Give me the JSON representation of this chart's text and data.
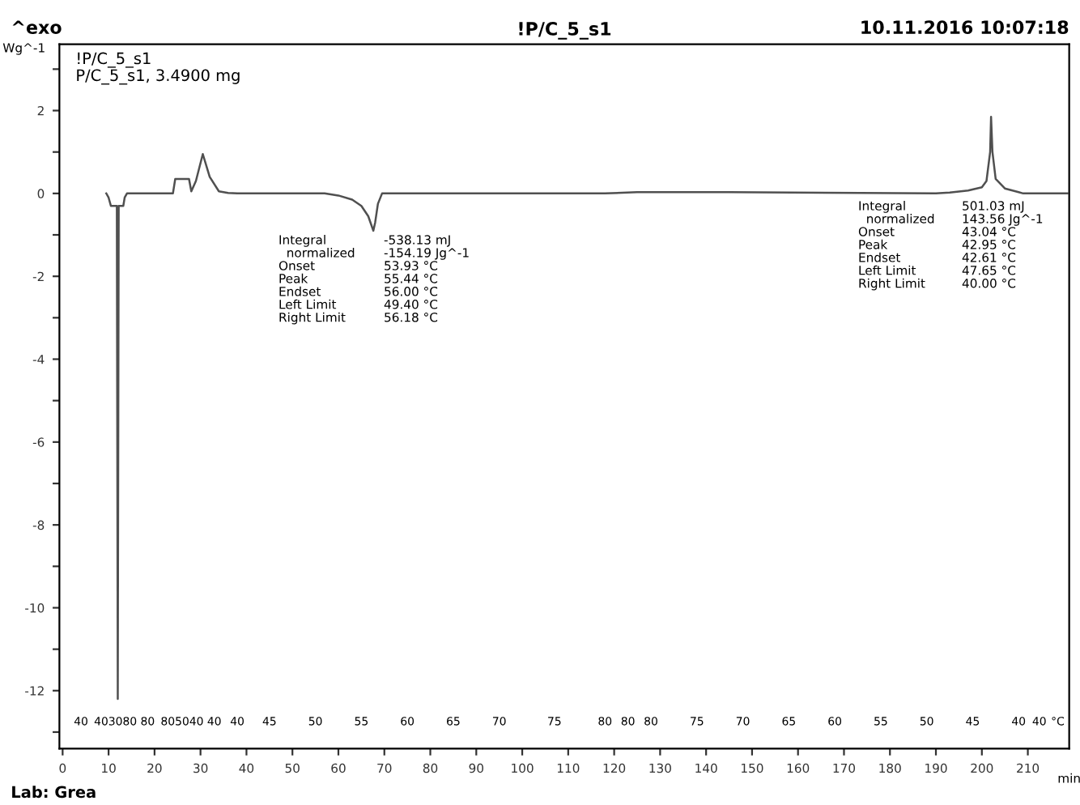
{
  "chart_data": {
    "type": "line",
    "title": "!P/C_5_s1",
    "ylabel": "Wg^-1",
    "xlabel": "min",
    "x": [
      9.5,
      10,
      10.5,
      11.8,
      12,
      12.2,
      12.5,
      13.2,
      13.5,
      14,
      24,
      24.5,
      27.5,
      28,
      29,
      30.5,
      32,
      34,
      36,
      38,
      57,
      60,
      63,
      65,
      66.5,
      67.6,
      68,
      68.6,
      69.5,
      118,
      125,
      145,
      190,
      193,
      197,
      200,
      201,
      201.8,
      202,
      202.3,
      203,
      205,
      208,
      209,
      213,
      218.6
    ],
    "series": [
      {
        "color": "#505050",
        "values": [
          0,
          -0.1,
          -0.3,
          -0.3,
          -12.2,
          -0.3,
          -0.3,
          -0.3,
          -0.1,
          0,
          0,
          0.35,
          0.35,
          0.05,
          0.3,
          0.95,
          0.4,
          0.05,
          0.01,
          0,
          0,
          -0.05,
          -0.15,
          -0.3,
          -0.55,
          -0.9,
          -0.7,
          -0.25,
          0,
          0,
          0.03,
          0.03,
          0,
          0.02,
          0.07,
          0.15,
          0.3,
          1.0,
          1.85,
          1.0,
          0.35,
          0.12,
          0.03,
          0,
          0,
          0
        ]
      }
    ],
    "xlim": [
      -0.7,
      219
    ],
    "ylim": [
      -13.4,
      3.6
    ],
    "xticks": [
      0,
      10,
      20,
      30,
      40,
      50,
      60,
      70,
      80,
      90,
      100,
      110,
      120,
      130,
      140,
      150,
      160,
      170,
      180,
      190,
      200,
      210
    ],
    "yticks": [
      {
        "value": -13,
        "label": null
      },
      -12,
      {
        "value": -11,
        "label": null
      },
      -10,
      {
        "value": -9,
        "label": null
      },
      -8,
      {
        "value": -7,
        "label": null
      },
      -6,
      {
        "value": -5,
        "label": null
      },
      -4,
      {
        "value": -3,
        "label": null
      },
      -2,
      {
        "value": -1,
        "label": null
      },
      0,
      {
        "value": 1,
        "label": null
      },
      2,
      {
        "value": 3,
        "label": null
      }
    ],
    "grid": false,
    "legend": false,
    "annotations": [
      "^exo",
      "10.11.2016 10:07:18",
      "!P/C_5_s1\nP/C_5_s1, 3.4900 mg",
      "Lab: Grea",
      "Integral\n  normalized\nOnset\nPeak\nEndset\nLeft Limit\nRight Limit",
      "-538.13 mJ\n-154.19 Jg^-1\n53.93 °C\n55.44 °C\n56.00 °C\n49.40 °C\n56.18 °C",
      "Integral\n  normalized\nOnset\nPeak\nEndset\nLeft Limit\nRight Limit",
      "501.03 mJ\n143.56 Jg^-1\n43.04 °C\n42.95 °C\n42.61 °C\n47.65 °C\n40.00 °C",
      "40",
      "403080",
      "80",
      "805040",
      "40",
      "40",
      "45",
      "50",
      "55",
      "60",
      "65",
      "70",
      "75",
      "80",
      "80",
      "80",
      "75",
      "70",
      "65",
      "60",
      "55",
      "50",
      "45",
      "40",
      "40",
      "°C"
    ]
  }
}
